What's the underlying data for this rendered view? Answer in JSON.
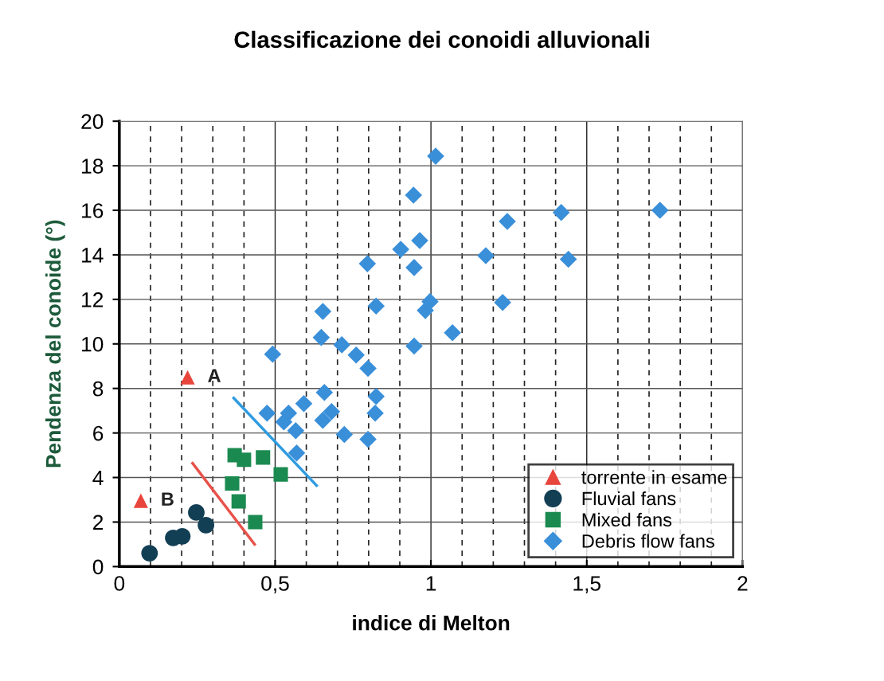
{
  "chart_data": {
    "type": "scatter",
    "title": "Classificazione dei conoidi alluvionali",
    "xlabel": "indice di Melton",
    "ylabel": "Pendenza del conoide (°)",
    "xlim": [
      0,
      2
    ],
    "ylim": [
      0,
      20
    ],
    "xticks": [
      0,
      {
        "value": 0.1,
        "label": null
      },
      {
        "value": 0.2,
        "label": null
      },
      {
        "value": 0.3,
        "label": null
      },
      {
        "value": 0.4,
        "label": null
      },
      {
        "value": 0.5,
        "label": "0,5"
      },
      {
        "value": 0.6,
        "label": null
      },
      {
        "value": 0.7,
        "label": null
      },
      {
        "value": 0.8,
        "label": null
      },
      {
        "value": 0.9,
        "label": null
      },
      1,
      {
        "value": 1.1,
        "label": null
      },
      {
        "value": 1.2,
        "label": null
      },
      {
        "value": 1.3,
        "label": null
      },
      {
        "value": 1.4,
        "label": null
      },
      {
        "value": 1.5,
        "label": "1,5"
      },
      {
        "value": 1.6,
        "label": null
      },
      {
        "value": 1.7,
        "label": null
      },
      {
        "value": 1.8,
        "label": null
      },
      {
        "value": 1.9,
        "label": null
      },
      2
    ],
    "yticks": [
      0,
      2,
      4,
      6,
      8,
      10,
      12,
      14,
      16,
      18,
      20
    ],
    "grid": true,
    "legend": "bottom right",
    "series": [
      {
        "name": "torrente in esame",
        "color": "#e8453c",
        "marker": "triangle",
        "x": [
          0.219,
          0.069
        ],
        "values": [
          8.5,
          2.96
        ]
      },
      {
        "name": "Fluvial fans",
        "color": "#133f55",
        "marker": "circle",
        "x": [
          0.097,
          0.173,
          0.202,
          0.247,
          0.278
        ],
        "values": [
          0.6,
          1.29,
          1.36,
          2.43,
          1.86
        ]
      },
      {
        "name": "Mixed fans",
        "color": "#1a8a50",
        "marker": "square",
        "x": [
          0.37,
          0.4,
          0.461,
          0.518,
          0.362,
          0.383,
          0.436
        ],
        "values": [
          5.0,
          4.8,
          4.9,
          4.14,
          3.73,
          2.93,
          2.0
        ]
      },
      {
        "name": "Debris flow fans",
        "color": "#3a8fd9",
        "marker": "diamond",
        "x": [
          1.015,
          0.944,
          0.964,
          0.903,
          0.946,
          0.796,
          1.176,
          1.245,
          1.418,
          1.441,
          1.735,
          0.824,
          0.997,
          0.982,
          1.23,
          1.069,
          0.946,
          0.76,
          0.798,
          0.653,
          0.648,
          0.714,
          0.492,
          0.658,
          0.824,
          0.821,
          0.592,
          0.474,
          0.543,
          0.528,
          0.566,
          0.653,
          0.681,
          0.722,
          0.798,
          0.569
        ],
        "values": [
          18.43,
          16.68,
          14.64,
          14.25,
          13.43,
          13.6,
          13.96,
          15.5,
          15.9,
          13.8,
          16.0,
          11.7,
          11.9,
          11.5,
          11.86,
          10.5,
          9.9,
          9.5,
          8.9,
          11.46,
          10.29,
          9.96,
          9.54,
          7.82,
          7.64,
          6.89,
          7.32,
          6.89,
          6.89,
          6.5,
          6.1,
          6.57,
          6.96,
          5.93,
          5.72,
          5.1
        ]
      },
      {
        "type": "line",
        "color": "#e8524a",
        "marker": "none",
        "x": [
          0.235,
          0.434
        ],
        "values": [
          4.64,
          1.0
        ]
      },
      {
        "type": "line",
        "color": "#2e9be0",
        "marker": "none",
        "x": [
          0.367,
          0.633
        ],
        "values": [
          7.57,
          3.64
        ]
      }
    ],
    "annotations": [
      {
        "text": "A",
        "x": 0.219,
        "y": 8.5
      },
      {
        "text": "B",
        "x": 0.069,
        "y": 2.96
      }
    ]
  }
}
